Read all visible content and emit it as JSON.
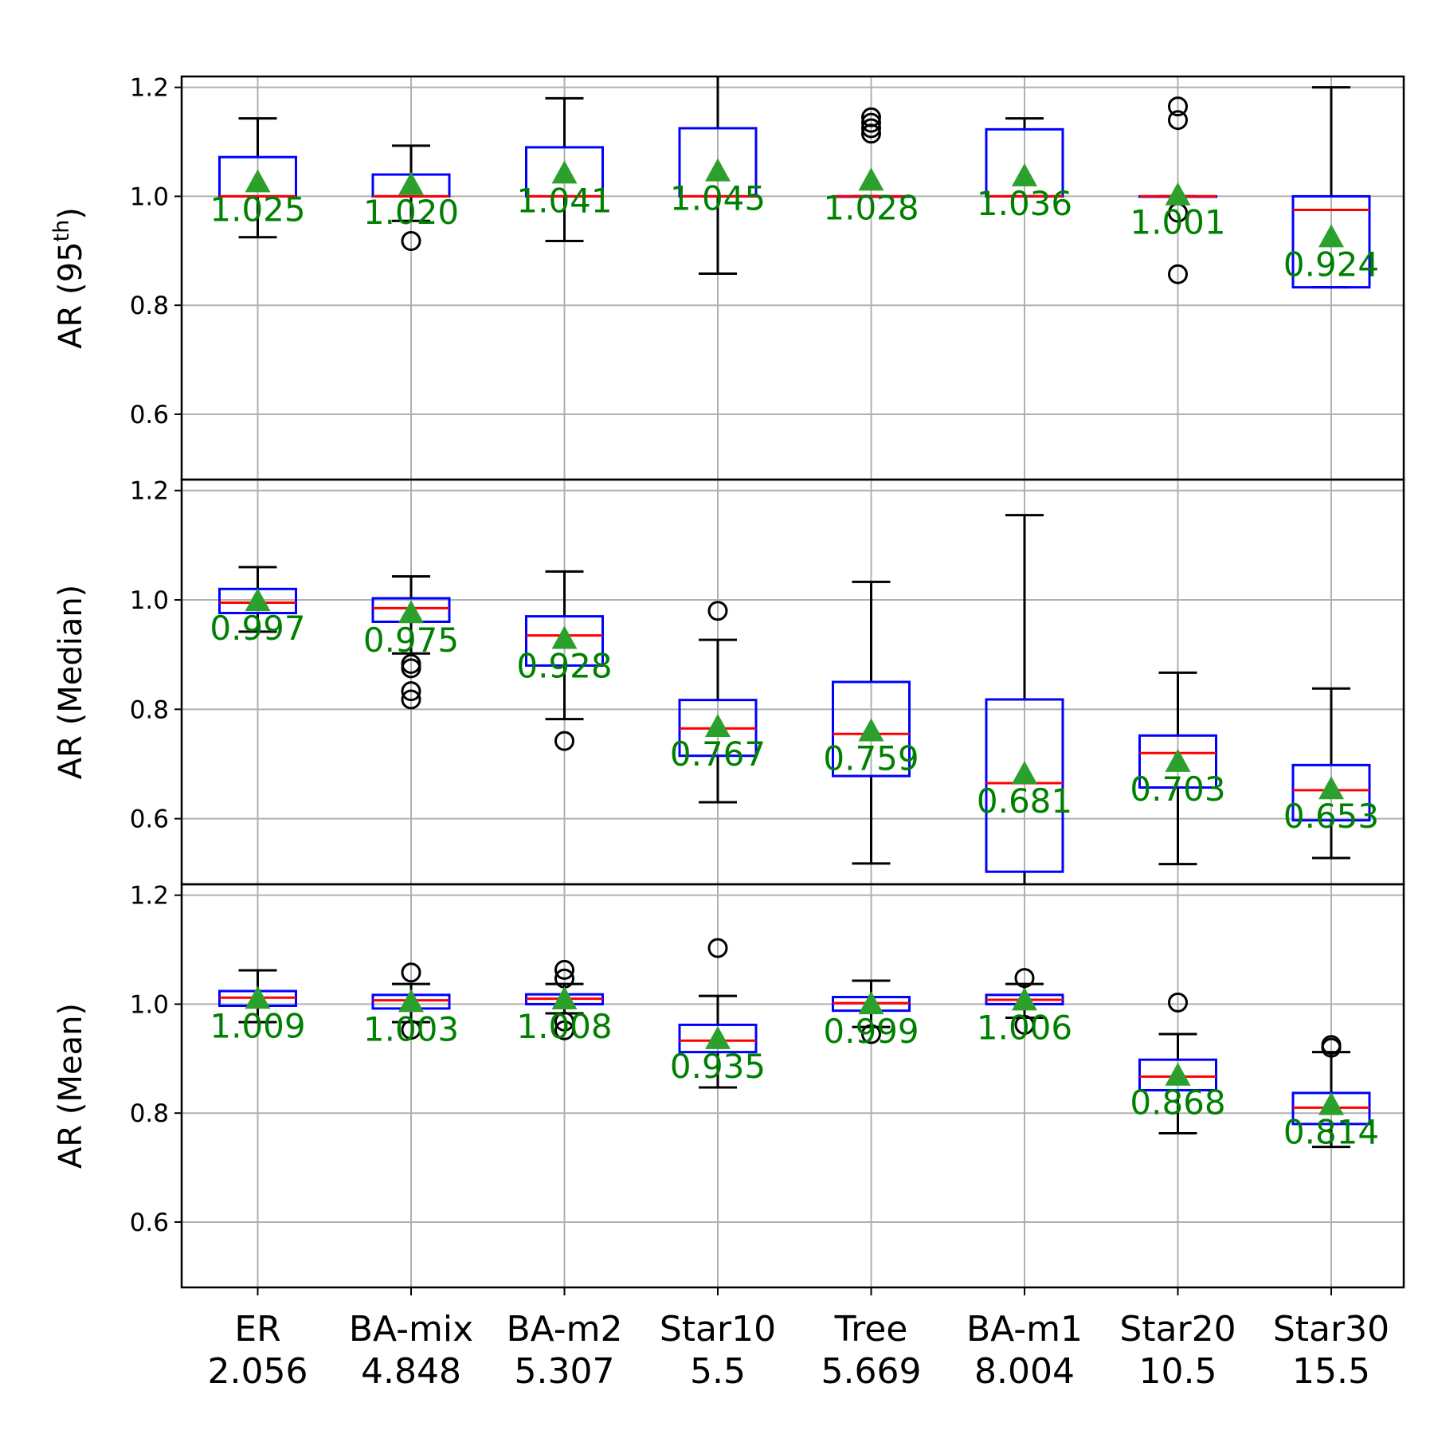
{
  "colors": {
    "box": "#0000ff",
    "median": "#ff0000",
    "whisker": "#000000",
    "mean_marker": "#2ca02c",
    "mean_label": "#008000",
    "grid": "#b0b0b0"
  },
  "chart_data": {
    "type": "box",
    "layout": "three vertically stacked panels sharing the x axis",
    "grid": true,
    "categories": [
      {
        "name": "ER",
        "value": "2.056"
      },
      {
        "name": "BA-mix",
        "value": "4.848"
      },
      {
        "name": "BA-m2",
        "value": "5.307"
      },
      {
        "name": "Star10",
        "value": "5.5"
      },
      {
        "name": "Tree",
        "value": "5.669"
      },
      {
        "name": "BA-m1",
        "value": "8.004"
      },
      {
        "name": "Star20",
        "value": "10.5"
      },
      {
        "name": "Star30",
        "value": "15.5"
      }
    ],
    "panels": [
      {
        "ylabel": "AR (95",
        "ylabel_sup": "th",
        "ylabel_close": ")",
        "ylim": [
          0.48,
          1.22
        ],
        "yticks": [
          0.6,
          0.8,
          1.0,
          1.2
        ],
        "ytick_labels": [
          "0.6",
          "0.8",
          "1.0",
          "1.2"
        ],
        "boxes": [
          {
            "whislo": 0.925,
            "q1": 1.0,
            "med": 1.0,
            "q3": 1.072,
            "whishi": 1.143,
            "mean": 1.025,
            "mean_label": "1.025",
            "fliers": []
          },
          {
            "whislo": 0.955,
            "q1": 1.0,
            "med": 1.0,
            "q3": 1.04,
            "whishi": 1.093,
            "mean": 1.02,
            "mean_label": "1.020",
            "fliers": [
              0.918
            ]
          },
          {
            "whislo": 0.918,
            "q1": 1.0,
            "med": 1.0,
            "q3": 1.09,
            "whishi": 1.18,
            "mean": 1.041,
            "mean_label": "1.041",
            "fliers": []
          },
          {
            "whislo": 0.858,
            "q1": 1.0,
            "med": 1.0,
            "q3": 1.125,
            "whishi": 1.23,
            "mean": 1.045,
            "mean_label": "1.045",
            "fliers": []
          },
          {
            "whislo": 1.0,
            "q1": 1.0,
            "med": 1.0,
            "q3": 1.0,
            "whishi": 1.0,
            "mean": 1.028,
            "mean_label": "1.028",
            "fliers": [
              1.145,
              1.135,
              1.125,
              1.115
            ]
          },
          {
            "whislo": 1.0,
            "q1": 1.0,
            "med": 1.0,
            "q3": 1.123,
            "whishi": 1.143,
            "mean": 1.036,
            "mean_label": "1.036",
            "fliers": []
          },
          {
            "whislo": 1.0,
            "q1": 1.0,
            "med": 1.0,
            "q3": 1.0,
            "whishi": 1.0,
            "mean": 1.001,
            "mean_label": "1.001",
            "fliers": [
              1.165,
              1.14,
              0.97,
              0.857
            ]
          },
          {
            "whislo": 0.833,
            "q1": 0.833,
            "med": 0.975,
            "q3": 1.0,
            "whishi": 1.2,
            "mean": 0.924,
            "mean_label": "0.924",
            "fliers": []
          }
        ]
      },
      {
        "ylabel": "AR (Median)",
        "ylim": [
          0.48,
          1.22
        ],
        "yticks": [
          0.6,
          0.8,
          1.0,
          1.2
        ],
        "ytick_labels": [
          "0.6",
          "0.8",
          "1.0",
          "1.2"
        ],
        "boxes": [
          {
            "whislo": 0.942,
            "q1": 0.976,
            "med": 0.995,
            "q3": 1.02,
            "whishi": 1.06,
            "mean": 0.997,
            "mean_label": "0.997",
            "fliers": []
          },
          {
            "whislo": 0.902,
            "q1": 0.96,
            "med": 0.985,
            "q3": 1.003,
            "whishi": 1.043,
            "mean": 0.975,
            "mean_label": "0.975",
            "fliers": [
              0.883,
              0.875,
              0.833,
              0.818
            ]
          },
          {
            "whislo": 0.782,
            "q1": 0.88,
            "med": 0.935,
            "q3": 0.97,
            "whishi": 1.052,
            "mean": 0.928,
            "mean_label": "0.928",
            "fliers": [
              0.742
            ]
          },
          {
            "whislo": 0.63,
            "q1": 0.715,
            "med": 0.765,
            "q3": 0.817,
            "whishi": 0.927,
            "mean": 0.767,
            "mean_label": "0.767",
            "fliers": [
              0.98
            ]
          },
          {
            "whislo": 0.518,
            "q1": 0.678,
            "med": 0.755,
            "q3": 0.85,
            "whishi": 1.033,
            "mean": 0.759,
            "mean_label": "0.759",
            "fliers": []
          },
          {
            "whislo": 0.47,
            "q1": 0.503,
            "med": 0.665,
            "q3": 0.818,
            "whishi": 1.155,
            "mean": 0.681,
            "mean_label": "0.681",
            "fliers": []
          },
          {
            "whislo": 0.517,
            "q1": 0.657,
            "med": 0.72,
            "q3": 0.752,
            "whishi": 0.867,
            "mean": 0.703,
            "mean_label": "0.703",
            "fliers": []
          },
          {
            "whislo": 0.528,
            "q1": 0.597,
            "med": 0.652,
            "q3": 0.698,
            "whishi": 0.838,
            "mean": 0.653,
            "mean_label": "0.653",
            "fliers": []
          }
        ]
      },
      {
        "ylabel": "AR (Mean)",
        "ylim": [
          0.48,
          1.22
        ],
        "yticks": [
          0.6,
          0.8,
          1.0,
          1.2
        ],
        "ytick_labels": [
          "0.6",
          "0.8",
          "1.0",
          "1.2"
        ],
        "boxes": [
          {
            "whislo": 0.967,
            "q1": 0.997,
            "med": 1.012,
            "q3": 1.024,
            "whishi": 1.062,
            "mean": 1.009,
            "mean_label": "1.009",
            "fliers": []
          },
          {
            "whislo": 0.967,
            "q1": 0.992,
            "med": 1.007,
            "q3": 1.017,
            "whishi": 1.037,
            "mean": 1.003,
            "mean_label": "1.003",
            "fliers": [
              1.058,
              0.953
            ]
          },
          {
            "whislo": 0.983,
            "q1": 1.0,
            "med": 1.01,
            "q3": 1.018,
            "whishi": 1.037,
            "mean": 1.008,
            "mean_label": "1.008",
            "fliers": [
              1.063,
              1.047,
              0.968,
              0.952
            ]
          },
          {
            "whislo": 0.847,
            "q1": 0.912,
            "med": 0.933,
            "q3": 0.962,
            "whishi": 1.015,
            "mean": 0.935,
            "mean_label": "0.935",
            "fliers": [
              1.103
            ]
          },
          {
            "whislo": 0.958,
            "q1": 0.988,
            "med": 1.002,
            "q3": 1.013,
            "whishi": 1.043,
            "mean": 0.999,
            "mean_label": "0.999",
            "fliers": [
              0.945
            ]
          },
          {
            "whislo": 0.975,
            "q1": 1.0,
            "med": 1.008,
            "q3": 1.017,
            "whishi": 1.037,
            "mean": 1.006,
            "mean_label": "1.006",
            "fliers": [
              1.048,
              0.962
            ]
          },
          {
            "whislo": 0.763,
            "q1": 0.842,
            "med": 0.867,
            "q3": 0.898,
            "whishi": 0.945,
            "mean": 0.868,
            "mean_label": "0.868",
            "fliers": [
              1.003
            ]
          },
          {
            "whislo": 0.738,
            "q1": 0.78,
            "med": 0.81,
            "q3": 0.837,
            "whishi": 0.912,
            "mean": 0.814,
            "mean_label": "0.814",
            "fliers": [
              0.925,
              0.92
            ]
          }
        ]
      }
    ]
  }
}
